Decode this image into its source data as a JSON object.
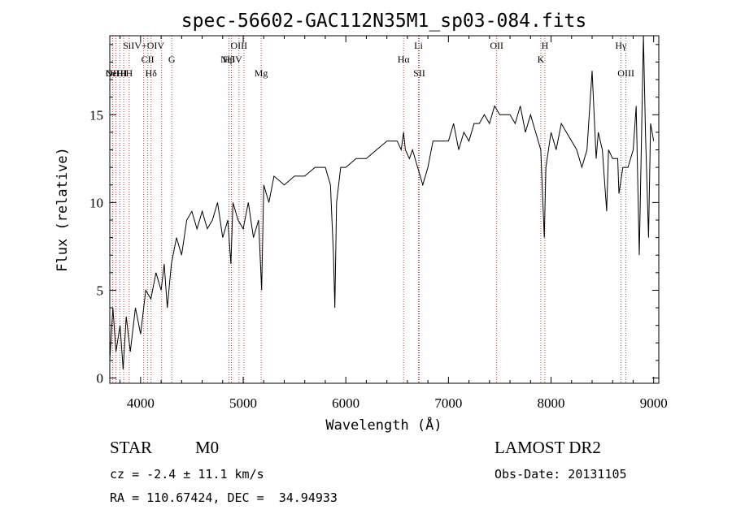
{
  "chart_data": {
    "type": "line",
    "title": "spec-56602-GAC112N35M1_sp03-084.fits",
    "xlabel": "Wavelength (Å)",
    "ylabel": "Flux (relative)",
    "xlim": [
      3700,
      9050
    ],
    "ylim": [
      -0.3,
      19.5
    ],
    "x_ticks": [
      4000,
      5000,
      6000,
      7000,
      8000,
      9000
    ],
    "x_tick_labels": [
      "4000",
      "5000",
      "6000",
      "7000",
      "8000",
      "9000"
    ],
    "y_ticks": [
      0,
      5,
      10,
      15
    ],
    "y_tick_labels": [
      "0",
      "5",
      "10",
      "15"
    ],
    "grid": false,
    "series": [
      {
        "color": "#000000",
        "x": [
          3700,
          3730,
          3760,
          3800,
          3830,
          3860,
          3900,
          3950,
          4000,
          4050,
          4100,
          4150,
          4200,
          4230,
          4260,
          4300,
          4350,
          4400,
          4450,
          4500,
          4550,
          4600,
          4650,
          4700,
          4750,
          4800,
          4850,
          4880,
          4900,
          4950,
          5000,
          5050,
          5100,
          5150,
          5180,
          5200,
          5250,
          5300,
          5400,
          5500,
          5600,
          5700,
          5800,
          5850,
          5880,
          5893,
          5910,
          5950,
          6000,
          6100,
          6200,
          6300,
          6400,
          6500,
          6540,
          6563,
          6580,
          6620,
          6650,
          6700,
          6750,
          6800,
          6850,
          6900,
          7000,
          7050,
          7100,
          7150,
          7200,
          7250,
          7300,
          7350,
          7400,
          7450,
          7500,
          7550,
          7600,
          7650,
          7700,
          7750,
          7800,
          7850,
          7900,
          7934,
          7950,
          8000,
          8050,
          8100,
          8150,
          8200,
          8250,
          8300,
          8350,
          8400,
          8440,
          8460,
          8500,
          8542,
          8560,
          8600,
          8650,
          8662,
          8700,
          8750,
          8800,
          8830,
          8860,
          8900,
          8920,
          8950,
          8970,
          9000
        ],
        "y": [
          1,
          4,
          1.5,
          3,
          0.5,
          3.5,
          1.5,
          4,
          2.5,
          5,
          4.5,
          6,
          5,
          6.5,
          4,
          6.5,
          8,
          7,
          9,
          9.5,
          8.5,
          9.5,
          8.5,
          9,
          10,
          8,
          9,
          6.5,
          10,
          9,
          8.5,
          10,
          8,
          9,
          5,
          11,
          10,
          11.5,
          11,
          11.5,
          11.5,
          12,
          12,
          11,
          7,
          4,
          10,
          12,
          12,
          12.5,
          12.5,
          13,
          13.5,
          13.5,
          13,
          14,
          13,
          12.5,
          13,
          12,
          11,
          12,
          13.5,
          13.5,
          13.5,
          14.5,
          13,
          14,
          13.5,
          14.5,
          14.5,
          15,
          14.5,
          15.5,
          15,
          15,
          15,
          14.5,
          15.5,
          14,
          15,
          14,
          13,
          8,
          12,
          14,
          13,
          14.5,
          14,
          13.5,
          13,
          12,
          13,
          17.5,
          12.5,
          14,
          13,
          9.5,
          13,
          12.5,
          12.5,
          10.5,
          12,
          12,
          13,
          15.5,
          7,
          19.5,
          14,
          8,
          14.5,
          13.5
        ]
      }
    ],
    "line_markers": [
      {
        "x": 3727,
        "label": "OII",
        "row": 4
      },
      {
        "x": 3760,
        "label": "NeIII",
        "row": 4
      },
      {
        "x": 3798,
        "label": "H",
        "row": 4
      },
      {
        "x": 3835,
        "label": "H",
        "row": 4
      },
      {
        "x": 3889,
        "label": "H",
        "row": 4
      },
      {
        "x": 4030,
        "label": "SiIV+OIV",
        "row": 1
      },
      {
        "x": 4070,
        "label": "CII",
        "row": 2
      },
      {
        "x": 4102,
        "label": "Hδ",
        "row": 3
      },
      {
        "x": 4205,
        "label": "",
        "row": 0
      },
      {
        "x": 4304,
        "label": "G",
        "row": 2
      },
      {
        "x": 4861,
        "label": "Hβ",
        "row": 2
      },
      {
        "x": 4885,
        "label": "NeIV",
        "row": 2
      },
      {
        "x": 4959,
        "label": "OIII",
        "row": 1
      },
      {
        "x": 5007,
        "label": "",
        "row": 0
      },
      {
        "x": 5175,
        "label": "Mg",
        "row": 3
      },
      {
        "x": 6563,
        "label": "Hα",
        "row": 2
      },
      {
        "x": 6708,
        "label": "Li",
        "row": 1
      },
      {
        "x": 6716,
        "label": "SII",
        "row": 3
      },
      {
        "x": 7470,
        "label": "OII",
        "row": 1
      },
      {
        "x": 7900,
        "label": "K",
        "row": 2
      },
      {
        "x": 7940,
        "label": "H",
        "row": 1
      },
      {
        "x": 8680,
        "label": "Hγ",
        "row": 1
      },
      {
        "x": 8730,
        "label": "OIII",
        "row": 3
      }
    ]
  },
  "info": {
    "object_class": "STAR",
    "subclass": "M0",
    "survey": "LAMOST DR2",
    "velocity": "cz = -2.4 ± 11.1 km/s",
    "obs_date": "Obs-Date: 20131105",
    "coords": "RA = 110.67424, DEC =  34.94933"
  }
}
